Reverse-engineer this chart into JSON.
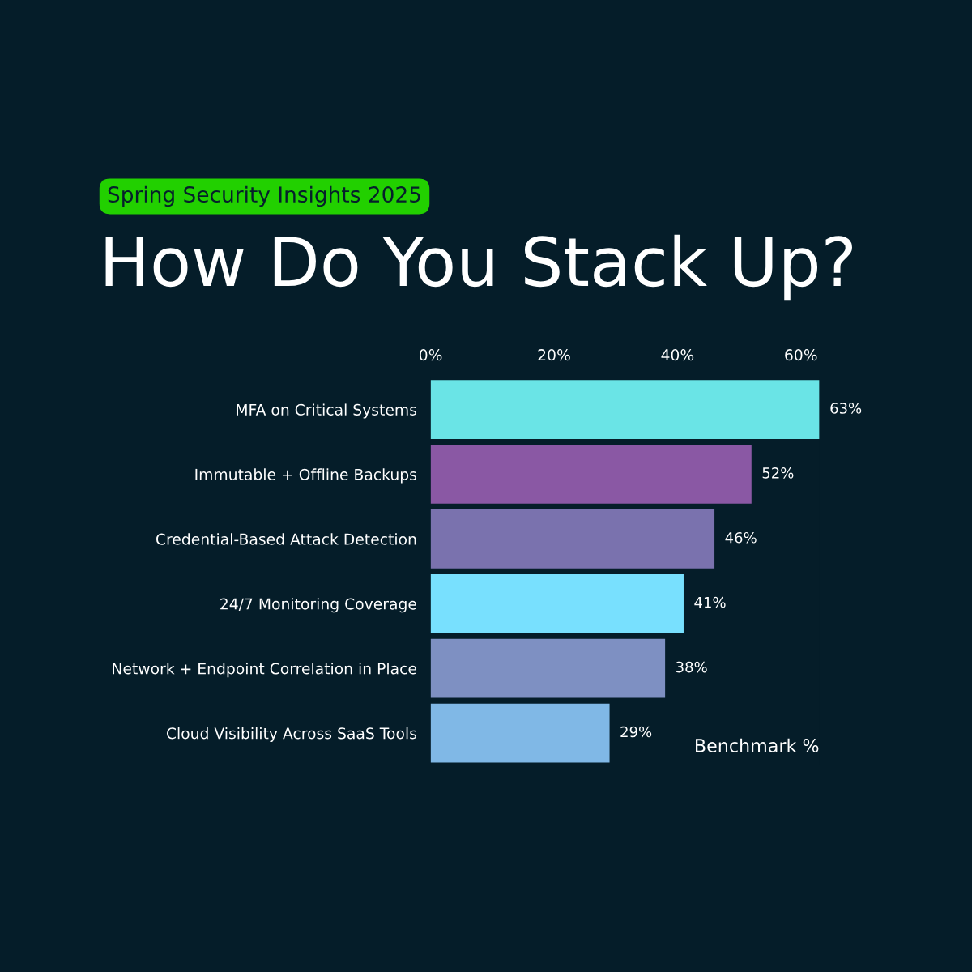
{
  "chart_data": {
    "type": "bar",
    "orientation": "horizontal",
    "title": "How Do You Stack Up?",
    "subtitle": "Spring Security Insights 2025",
    "xlabel": "Benchmark %",
    "categories": [
      "MFA on Critical Systems",
      "Immutable + Offline Backups",
      "Credential-Based Attack Detection",
      "24/7 Monitoring Coverage",
      "Network + Endpoint Correlation in Place",
      "Cloud Visibility Across SaaS Tools"
    ],
    "values": [
      63,
      52,
      46,
      41,
      38,
      29
    ],
    "value_labels": [
      "63%",
      "52%",
      "46%",
      "41%",
      "38%",
      "29%"
    ],
    "colors": [
      "#6ae4e6",
      "#8a58a4",
      "#7a72ae",
      "#78e0fe",
      "#7e90c2",
      "#80b8e6"
    ],
    "xlim": [
      0,
      63
    ],
    "xticks": [
      {
        "value": 0,
        "label": "0%"
      },
      {
        "value": 20,
        "label": "20%"
      },
      {
        "value": 40,
        "label": "40%"
      },
      {
        "value": 60,
        "label": "60%"
      }
    ],
    "grid": false,
    "legend": false
  }
}
